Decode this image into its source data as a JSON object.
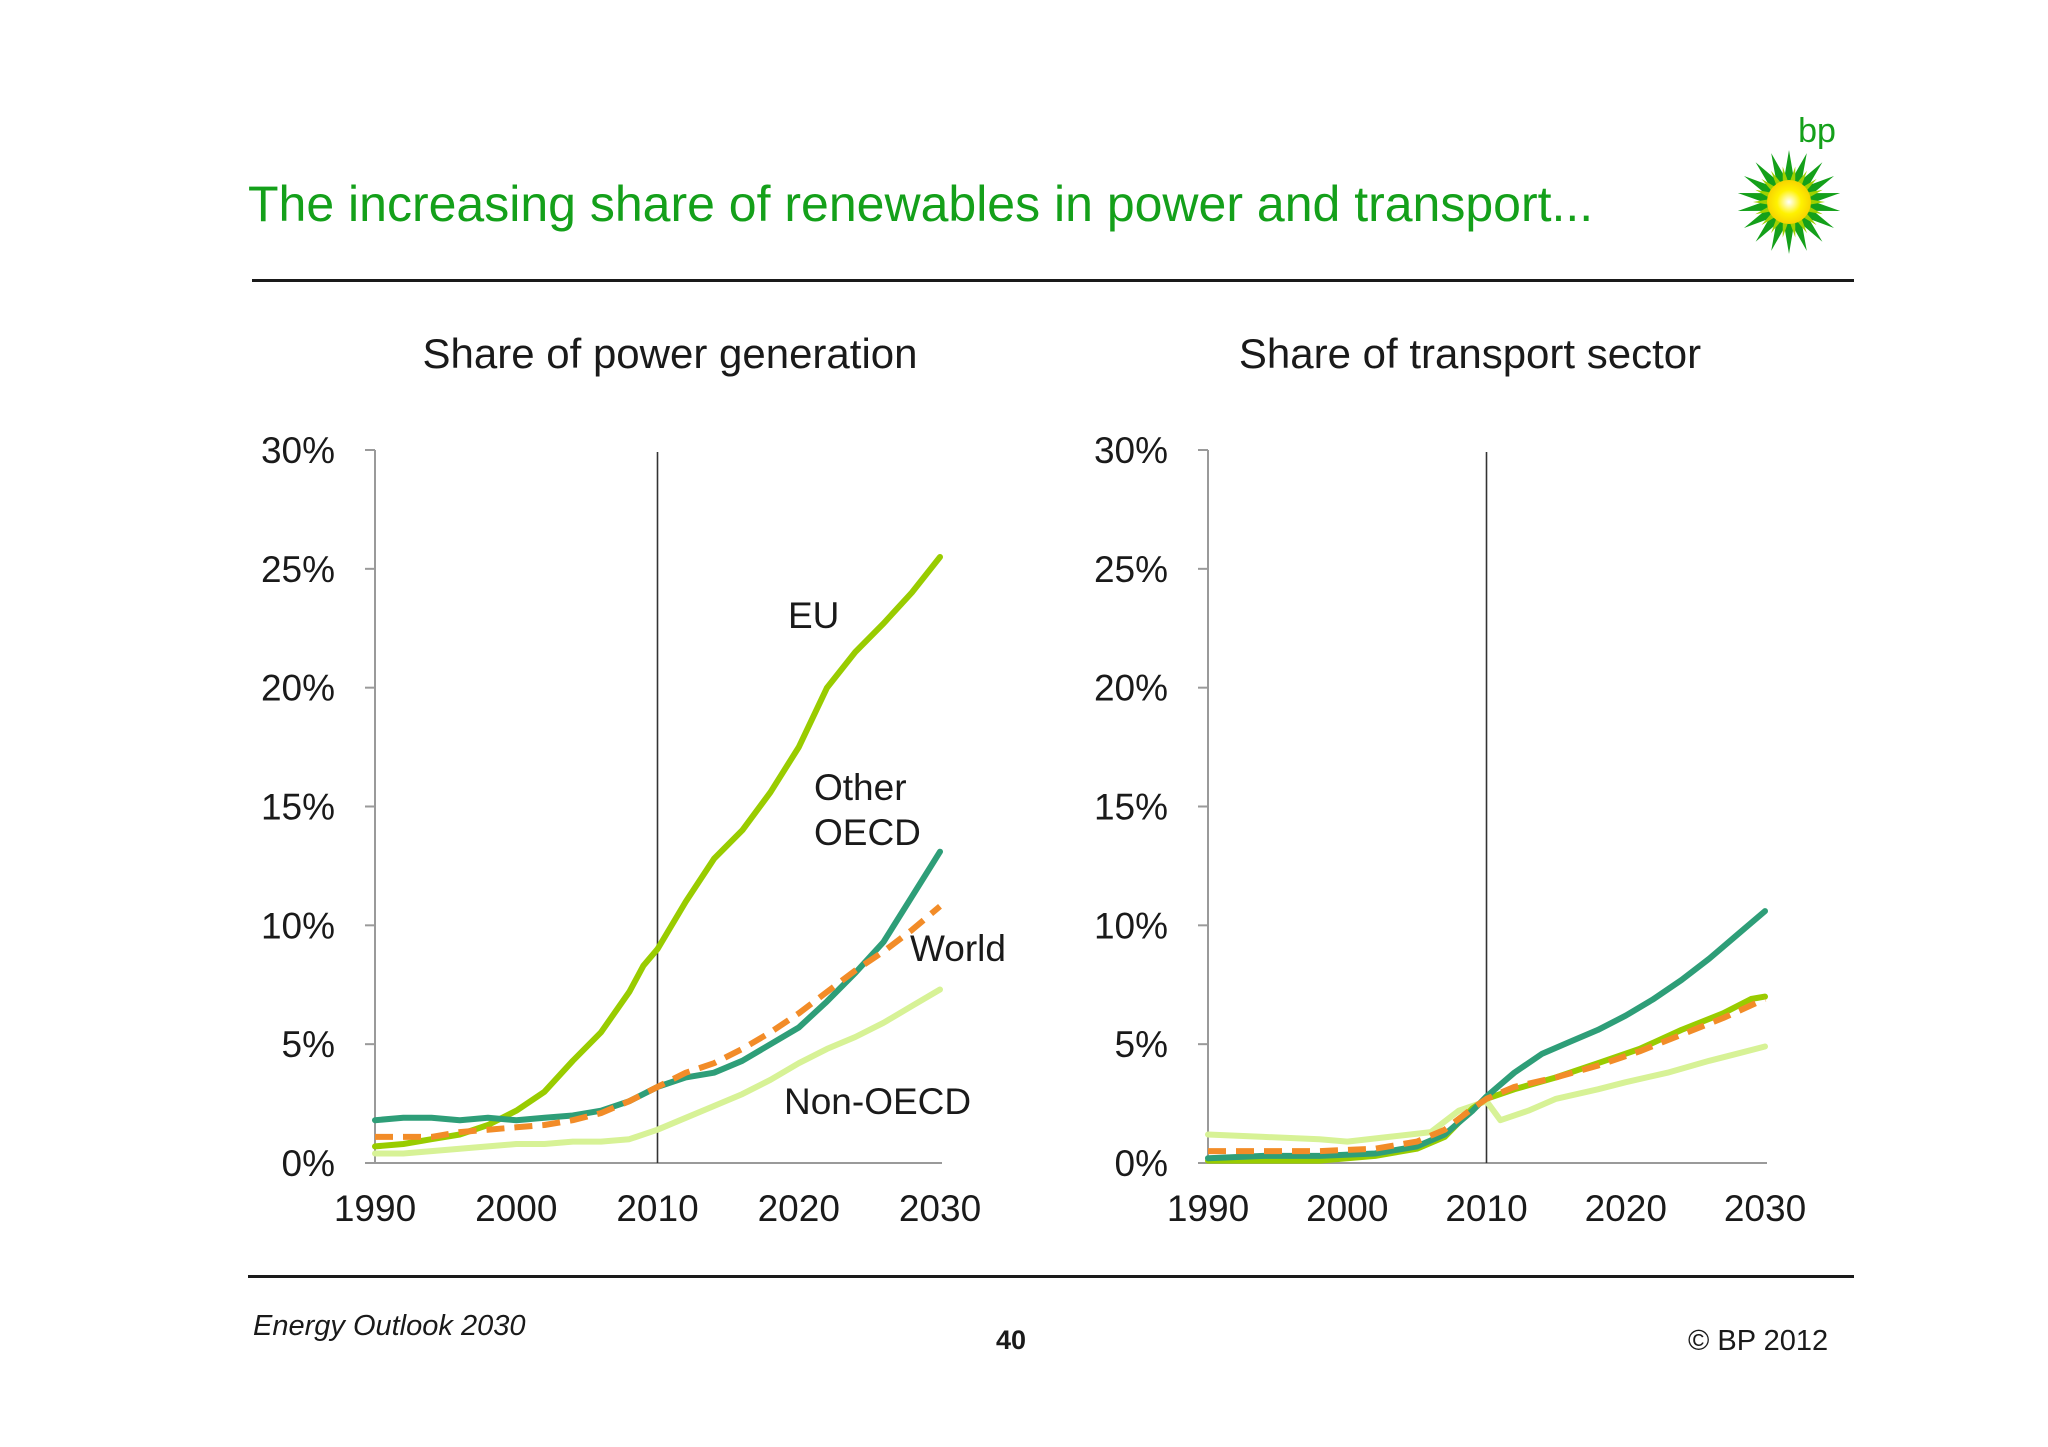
{
  "slide": {
    "title": "The increasing share of renewables in power and transport...",
    "logo_text": "bp",
    "footer_left": "Energy Outlook 2030",
    "page_number": "40",
    "copyright": "© BP 2012"
  },
  "colors": {
    "title": "#14a01a",
    "eu": "#99cc00",
    "other_oecd": "#2e9e78",
    "world": "#f28c28",
    "non_oecd": "#d7f296"
  },
  "chart_data": [
    {
      "type": "line",
      "title": "Share of power generation",
      "xlim": [
        1990,
        2030
      ],
      "ylim": [
        0,
        30
      ],
      "x_ticks": [
        "1990",
        "2000",
        "2010",
        "2020",
        "2030"
      ],
      "y_ticks": [
        "0%",
        "5%",
        "10%",
        "15%",
        "20%",
        "25%",
        "30%"
      ],
      "divider_x": 2010,
      "series": [
        {
          "name": "EU",
          "label": "EU",
          "style": "solid",
          "color": "#99cc00",
          "points": [
            [
              1990,
              0.7
            ],
            [
              1992,
              0.8
            ],
            [
              1994,
              1.0
            ],
            [
              1996,
              1.2
            ],
            [
              1998,
              1.6
            ],
            [
              2000,
              2.2
            ],
            [
              2002,
              3.0
            ],
            [
              2004,
              4.3
            ],
            [
              2006,
              5.5
            ],
            [
              2008,
              7.2
            ],
            [
              2009,
              8.3
            ],
            [
              2010,
              9.0
            ],
            [
              2012,
              11.0
            ],
            [
              2014,
              12.8
            ],
            [
              2016,
              14.0
            ],
            [
              2018,
              15.6
            ],
            [
              2020,
              17.5
            ],
            [
              2022,
              20.0
            ],
            [
              2024,
              21.5
            ],
            [
              2026,
              22.7
            ],
            [
              2028,
              24.0
            ],
            [
              2030,
              25.5
            ]
          ]
        },
        {
          "name": "Other OECD",
          "label": "Other OECD",
          "style": "solid",
          "color": "#2e9e78",
          "points": [
            [
              1990,
              1.8
            ],
            [
              1992,
              1.9
            ],
            [
              1994,
              1.9
            ],
            [
              1996,
              1.8
            ],
            [
              1998,
              1.9
            ],
            [
              2000,
              1.8
            ],
            [
              2002,
              1.9
            ],
            [
              2004,
              2.0
            ],
            [
              2006,
              2.2
            ],
            [
              2008,
              2.6
            ],
            [
              2010,
              3.2
            ],
            [
              2012,
              3.6
            ],
            [
              2014,
              3.8
            ],
            [
              2016,
              4.3
            ],
            [
              2018,
              5.0
            ],
            [
              2020,
              5.7
            ],
            [
              2022,
              6.8
            ],
            [
              2024,
              8.0
            ],
            [
              2026,
              9.3
            ],
            [
              2028,
              11.2
            ],
            [
              2030,
              13.1
            ]
          ]
        },
        {
          "name": "World",
          "label": "World",
          "style": "dashed",
          "color": "#f28c28",
          "points": [
            [
              1990,
              1.1
            ],
            [
              1992,
              1.1
            ],
            [
              1994,
              1.1
            ],
            [
              1996,
              1.3
            ],
            [
              1998,
              1.4
            ],
            [
              2000,
              1.5
            ],
            [
              2002,
              1.6
            ],
            [
              2004,
              1.8
            ],
            [
              2006,
              2.1
            ],
            [
              2008,
              2.6
            ],
            [
              2010,
              3.2
            ],
            [
              2012,
              3.8
            ],
            [
              2014,
              4.2
            ],
            [
              2016,
              4.8
            ],
            [
              2018,
              5.5
            ],
            [
              2020,
              6.3
            ],
            [
              2022,
              7.2
            ],
            [
              2024,
              8.1
            ],
            [
              2026,
              8.9
            ],
            [
              2028,
              9.8
            ],
            [
              2030,
              10.8
            ]
          ]
        },
        {
          "name": "Non-OECD",
          "label": "Non-OECD",
          "style": "solid",
          "color": "#d7f296",
          "points": [
            [
              1990,
              0.4
            ],
            [
              1992,
              0.4
            ],
            [
              1994,
              0.5
            ],
            [
              1996,
              0.6
            ],
            [
              1998,
              0.7
            ],
            [
              2000,
              0.8
            ],
            [
              2002,
              0.8
            ],
            [
              2004,
              0.9
            ],
            [
              2006,
              0.9
            ],
            [
              2008,
              1.0
            ],
            [
              2010,
              1.4
            ],
            [
              2012,
              1.9
            ],
            [
              2014,
              2.4
            ],
            [
              2016,
              2.9
            ],
            [
              2018,
              3.5
            ],
            [
              2020,
              4.2
            ],
            [
              2022,
              4.8
            ],
            [
              2024,
              5.3
            ],
            [
              2026,
              5.9
            ],
            [
              2028,
              6.6
            ],
            [
              2030,
              7.3
            ]
          ]
        }
      ]
    },
    {
      "type": "line",
      "title": "Share of transport sector",
      "xlim": [
        1990,
        2030
      ],
      "ylim": [
        0,
        30
      ],
      "x_ticks": [
        "1990",
        "2000",
        "2010",
        "2020",
        "2030"
      ],
      "y_ticks": [
        "0%",
        "5%",
        "10%",
        "15%",
        "20%",
        "25%",
        "30%"
      ],
      "divider_x": 2010,
      "series": [
        {
          "style": "solid",
          "color": "#d7f296",
          "points": [
            [
              1990,
              1.2
            ],
            [
              1994,
              1.1
            ],
            [
              1998,
              1.0
            ],
            [
              2000,
              0.9
            ],
            [
              2003,
              1.1
            ],
            [
              2006,
              1.3
            ],
            [
              2008,
              2.2
            ],
            [
              2010,
              2.6
            ],
            [
              2011,
              1.8
            ],
            [
              2013,
              2.2
            ],
            [
              2015,
              2.7
            ],
            [
              2018,
              3.1
            ],
            [
              2020,
              3.4
            ],
            [
              2023,
              3.8
            ],
            [
              2026,
              4.3
            ],
            [
              2028,
              4.6
            ],
            [
              2030,
              4.9
            ]
          ]
        },
        {
          "style": "solid",
          "color": "#99cc00",
          "points": [
            [
              1990,
              0.1
            ],
            [
              1994,
              0.1
            ],
            [
              1998,
              0.1
            ],
            [
              2002,
              0.3
            ],
            [
              2005,
              0.6
            ],
            [
              2007,
              1.1
            ],
            [
              2009,
              2.3
            ],
            [
              2010,
              2.7
            ],
            [
              2012,
              3.1
            ],
            [
              2015,
              3.6
            ],
            [
              2018,
              4.2
            ],
            [
              2021,
              4.8
            ],
            [
              2024,
              5.6
            ],
            [
              2027,
              6.3
            ],
            [
              2029,
              6.9
            ],
            [
              2030,
              7.0
            ]
          ]
        },
        {
          "style": "solid",
          "color": "#2e9e78",
          "points": [
            [
              1990,
              0.2
            ],
            [
              1994,
              0.3
            ],
            [
              1998,
              0.3
            ],
            [
              2002,
              0.4
            ],
            [
              2005,
              0.7
            ],
            [
              2007,
              1.2
            ],
            [
              2009,
              2.2
            ],
            [
              2010,
              2.8
            ],
            [
              2012,
              3.8
            ],
            [
              2014,
              4.6
            ],
            [
              2016,
              5.1
            ],
            [
              2018,
              5.6
            ],
            [
              2020,
              6.2
            ],
            [
              2022,
              6.9
            ],
            [
              2024,
              7.7
            ],
            [
              2026,
              8.6
            ],
            [
              2028,
              9.6
            ],
            [
              2030,
              10.6
            ]
          ]
        },
        {
          "style": "dashed",
          "color": "#f28c28",
          "points": [
            [
              1990,
              0.5
            ],
            [
              1994,
              0.5
            ],
            [
              1998,
              0.5
            ],
            [
              2002,
              0.6
            ],
            [
              2005,
              0.9
            ],
            [
              2007,
              1.4
            ],
            [
              2009,
              2.3
            ],
            [
              2010,
              2.7
            ],
            [
              2012,
              3.2
            ],
            [
              2015,
              3.6
            ],
            [
              2018,
              4.1
            ],
            [
              2021,
              4.7
            ],
            [
              2024,
              5.4
            ],
            [
              2027,
              6.1
            ],
            [
              2030,
              6.9
            ]
          ]
        }
      ]
    }
  ]
}
